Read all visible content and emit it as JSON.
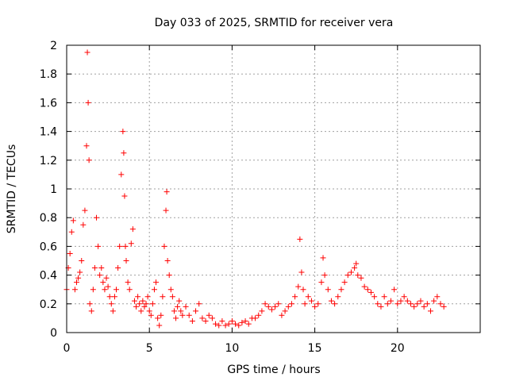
{
  "chart_data": {
    "type": "scatter",
    "title": "Day 033 of 2025, SRMTID for receiver vera",
    "xlabel": "GPS time / hours",
    "ylabel": "SRMTID / TECUs",
    "xlim": [
      0,
      25
    ],
    "ylim": [
      0,
      2
    ],
    "xticks": [
      0,
      5,
      10,
      15,
      20
    ],
    "xtick_labels": [
      "0",
      "5",
      "10",
      "15",
      "20"
    ],
    "yticks": [
      0,
      0.2,
      0.4,
      0.6,
      0.8,
      1,
      1.2,
      1.4,
      1.6,
      1.8,
      2
    ],
    "ytick_labels": [
      "0",
      "0.2",
      "0.4",
      "0.6",
      "0.8",
      "1",
      "1.2",
      "1.4",
      "1.6",
      "1.8",
      "2"
    ],
    "grid": true,
    "marker": "+",
    "color": "#ff0000",
    "series": [
      {
        "name": "SRMTID",
        "x": [
          0.0,
          0.1,
          0.2,
          0.3,
          0.4,
          0.5,
          0.6,
          0.7,
          0.8,
          0.9,
          1.0,
          1.1,
          1.2,
          1.25,
          1.3,
          1.35,
          1.4,
          1.5,
          1.6,
          1.7,
          1.8,
          1.9,
          2.0,
          2.1,
          2.2,
          2.3,
          2.4,
          2.5,
          2.6,
          2.7,
          2.8,
          2.9,
          3.0,
          3.1,
          3.2,
          3.3,
          3.4,
          3.45,
          3.5,
          3.55,
          3.6,
          3.7,
          3.8,
          3.9,
          4.0,
          4.1,
          4.2,
          4.3,
          4.4,
          4.5,
          4.6,
          4.7,
          4.8,
          4.9,
          5.0,
          5.1,
          5.2,
          5.3,
          5.4,
          5.5,
          5.6,
          5.7,
          5.8,
          5.9,
          6.0,
          6.05,
          6.1,
          6.2,
          6.3,
          6.4,
          6.5,
          6.6,
          6.7,
          6.8,
          6.9,
          7.0,
          7.2,
          7.4,
          7.6,
          7.8,
          8.0,
          8.2,
          8.4,
          8.6,
          8.8,
          9.0,
          9.2,
          9.4,
          9.6,
          9.8,
          10.0,
          10.2,
          10.4,
          10.6,
          10.8,
          11.0,
          11.2,
          11.4,
          11.6,
          11.8,
          12.0,
          12.2,
          12.4,
          12.6,
          12.8,
          13.0,
          13.2,
          13.4,
          13.6,
          13.8,
          14.0,
          14.1,
          14.2,
          14.3,
          14.4,
          14.6,
          14.8,
          15.0,
          15.2,
          15.4,
          15.5,
          15.6,
          15.8,
          16.0,
          16.2,
          16.4,
          16.6,
          16.8,
          17.0,
          17.2,
          17.4,
          17.5,
          17.6,
          17.8,
          18.0,
          18.2,
          18.4,
          18.6,
          18.8,
          19.0,
          19.2,
          19.4,
          19.6,
          19.8,
          20.0,
          20.2,
          20.4,
          20.6,
          20.8,
          21.0,
          21.2,
          21.4,
          21.6,
          21.8,
          22.0,
          22.2,
          22.4,
          22.6,
          22.8
        ],
        "y": [
          0.3,
          0.45,
          0.55,
          0.7,
          0.78,
          0.3,
          0.35,
          0.38,
          0.42,
          0.5,
          0.75,
          0.85,
          1.3,
          1.95,
          1.6,
          1.2,
          0.2,
          0.15,
          0.3,
          0.45,
          0.8,
          0.6,
          0.4,
          0.45,
          0.35,
          0.3,
          0.38,
          0.32,
          0.25,
          0.2,
          0.15,
          0.25,
          0.3,
          0.45,
          0.6,
          1.1,
          1.4,
          1.25,
          0.95,
          0.6,
          0.5,
          0.35,
          0.3,
          0.62,
          0.72,
          0.22,
          0.18,
          0.25,
          0.2,
          0.15,
          0.22,
          0.18,
          0.2,
          0.25,
          0.15,
          0.12,
          0.2,
          0.3,
          0.35,
          0.1,
          0.05,
          0.12,
          0.25,
          0.6,
          0.85,
          0.98,
          0.5,
          0.4,
          0.3,
          0.25,
          0.15,
          0.1,
          0.18,
          0.22,
          0.15,
          0.12,
          0.18,
          0.12,
          0.08,
          0.15,
          0.2,
          0.1,
          0.08,
          0.12,
          0.1,
          0.06,
          0.05,
          0.08,
          0.05,
          0.06,
          0.08,
          0.06,
          0.05,
          0.07,
          0.08,
          0.06,
          0.1,
          0.1,
          0.12,
          0.15,
          0.2,
          0.18,
          0.16,
          0.18,
          0.2,
          0.12,
          0.15,
          0.18,
          0.2,
          0.25,
          0.32,
          0.65,
          0.42,
          0.3,
          0.2,
          0.25,
          0.22,
          0.18,
          0.2,
          0.35,
          0.52,
          0.4,
          0.3,
          0.22,
          0.2,
          0.25,
          0.3,
          0.35,
          0.4,
          0.42,
          0.45,
          0.48,
          0.4,
          0.38,
          0.32,
          0.3,
          0.28,
          0.25,
          0.2,
          0.18,
          0.25,
          0.2,
          0.22,
          0.3,
          0.2,
          0.22,
          0.25,
          0.22,
          0.2,
          0.18,
          0.2,
          0.22,
          0.18,
          0.2,
          0.15,
          0.22,
          0.25,
          0.2,
          0.18
        ]
      }
    ]
  }
}
